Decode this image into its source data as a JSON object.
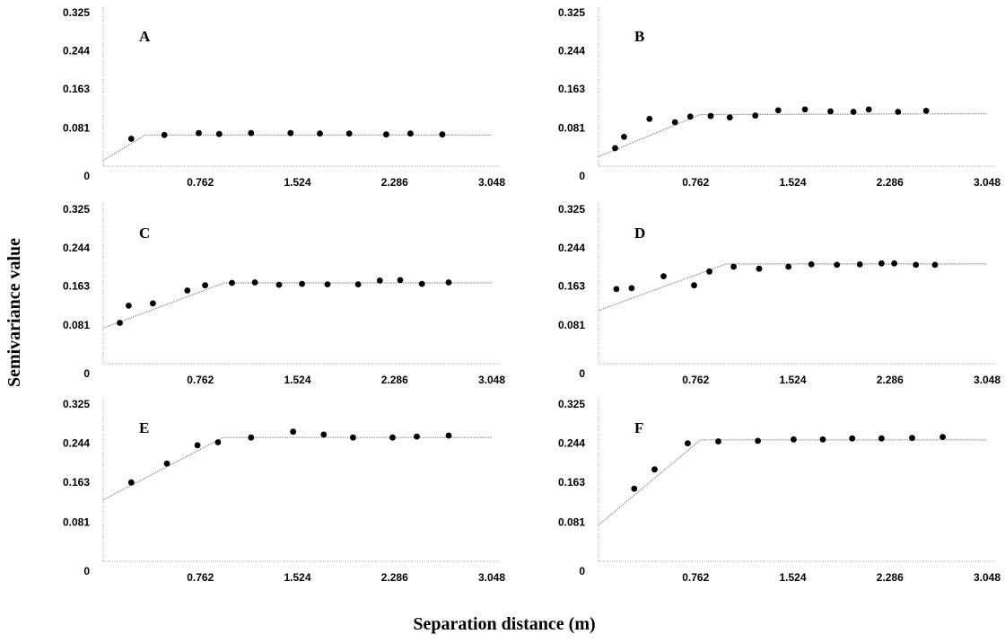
{
  "figure": {
    "ylabel": "Semivariance value",
    "xlabel": "Separation distance (m)"
  },
  "chart_data": [
    {
      "type": "scatter",
      "panel": "A",
      "xticks": [
        "0.762",
        "1.524",
        "2.286",
        "3.048"
      ],
      "yticks": [
        "0",
        "0.081",
        "0.163",
        "0.244",
        "0.325"
      ],
      "xlim": [
        0,
        3.048
      ],
      "ylim": [
        0,
        0.325
      ],
      "points": [
        [
          0.22,
          0.058
        ],
        [
          0.48,
          0.066
        ],
        [
          0.75,
          0.07
        ],
        [
          0.91,
          0.068
        ],
        [
          1.16,
          0.07
        ],
        [
          1.47,
          0.07
        ],
        [
          1.7,
          0.069
        ],
        [
          1.93,
          0.069
        ],
        [
          2.22,
          0.067
        ],
        [
          2.41,
          0.069
        ],
        [
          2.66,
          0.067
        ]
      ],
      "model": [
        [
          0,
          0.012
        ],
        [
          0.33,
          0.066
        ],
        [
          3.048,
          0.066
        ]
      ]
    },
    {
      "type": "scatter",
      "panel": "B",
      "xticks": [
        "0.762",
        "1.524",
        "2.286",
        "3.048"
      ],
      "yticks": [
        "0",
        "0.081",
        "0.163",
        "0.244",
        "0.325"
      ],
      "xlim": [
        0,
        3.048
      ],
      "ylim": [
        0,
        0.325
      ],
      "points": [
        [
          0.13,
          0.038
        ],
        [
          0.2,
          0.062
        ],
        [
          0.4,
          0.1
        ],
        [
          0.6,
          0.093
        ],
        [
          0.72,
          0.105
        ],
        [
          0.88,
          0.106
        ],
        [
          1.03,
          0.103
        ],
        [
          1.23,
          0.107
        ],
        [
          1.41,
          0.118
        ],
        [
          1.62,
          0.12
        ],
        [
          1.82,
          0.116
        ],
        [
          2.0,
          0.115
        ],
        [
          2.12,
          0.12
        ],
        [
          2.35,
          0.115
        ],
        [
          2.57,
          0.117
        ]
      ],
      "model": [
        [
          0,
          0.02
        ],
        [
          0.8,
          0.109
        ],
        [
          3.048,
          0.111
        ]
      ]
    },
    {
      "type": "scatter",
      "panel": "C",
      "xticks": [
        "0.762",
        "1.524",
        "2.286",
        "3.048"
      ],
      "yticks": [
        "0",
        "0.081",
        "0.163",
        "0.244",
        "0.325"
      ],
      "xlim": [
        0,
        3.048
      ],
      "ylim": [
        0,
        0.325
      ],
      "points": [
        [
          0.13,
          0.086
        ],
        [
          0.2,
          0.122
        ],
        [
          0.39,
          0.127
        ],
        [
          0.66,
          0.154
        ],
        [
          0.8,
          0.165
        ],
        [
          1.01,
          0.17
        ],
        [
          1.19,
          0.171
        ],
        [
          1.38,
          0.166
        ],
        [
          1.56,
          0.168
        ],
        [
          1.76,
          0.167
        ],
        [
          2.0,
          0.167
        ],
        [
          2.17,
          0.175
        ],
        [
          2.33,
          0.176
        ],
        [
          2.5,
          0.168
        ],
        [
          2.71,
          0.171
        ]
      ],
      "model": [
        [
          0,
          0.075
        ],
        [
          0.95,
          0.17
        ],
        [
          3.048,
          0.17
        ]
      ]
    },
    {
      "type": "scatter",
      "panel": "D",
      "xticks": [
        "0.762",
        "1.524",
        "2.286",
        "3.048"
      ],
      "yticks": [
        "0",
        "0.081",
        "0.163",
        "0.244",
        "0.325"
      ],
      "xlim": [
        0,
        3.048
      ],
      "ylim": [
        0,
        0.325
      ],
      "points": [
        [
          0.14,
          0.157
        ],
        [
          0.26,
          0.159
        ],
        [
          0.51,
          0.184
        ],
        [
          0.75,
          0.165
        ],
        [
          0.87,
          0.194
        ],
        [
          1.06,
          0.204
        ],
        [
          1.26,
          0.2
        ],
        [
          1.49,
          0.204
        ],
        [
          1.67,
          0.209
        ],
        [
          1.87,
          0.208
        ],
        [
          2.05,
          0.209
        ],
        [
          2.22,
          0.211
        ],
        [
          2.32,
          0.211
        ],
        [
          2.49,
          0.208
        ],
        [
          2.64,
          0.208
        ]
      ],
      "model": [
        [
          0,
          0.112
        ],
        [
          1.0,
          0.21
        ],
        [
          3.048,
          0.21
        ]
      ]
    },
    {
      "type": "scatter",
      "panel": "E",
      "xticks": [
        "0.762",
        "1.524",
        "2.286",
        "3.048"
      ],
      "yticks": [
        "0",
        "0.081",
        "0.163",
        "0.244",
        "0.325"
      ],
      "xlim": [
        0,
        3.048
      ],
      "ylim": [
        0,
        0.325
      ],
      "points": [
        [
          0.22,
          0.163
        ],
        [
          0.5,
          0.202
        ],
        [
          0.74,
          0.24
        ],
        [
          0.9,
          0.246
        ],
        [
          1.16,
          0.256
        ],
        [
          1.49,
          0.268
        ],
        [
          1.73,
          0.262
        ],
        [
          1.96,
          0.256
        ],
        [
          2.27,
          0.256
        ],
        [
          2.46,
          0.258
        ],
        [
          2.71,
          0.26
        ]
      ],
      "model": [
        [
          0,
          0.127
        ],
        [
          0.94,
          0.256
        ],
        [
          3.048,
          0.256
        ]
      ]
    },
    {
      "type": "scatter",
      "panel": "F",
      "xticks": [
        "0.762",
        "1.524",
        "2.286",
        "3.048"
      ],
      "yticks": [
        "0",
        "0.081",
        "0.163",
        "0.244",
        "0.325"
      ],
      "xlim": [
        0,
        3.048
      ],
      "ylim": [
        0,
        0.325
      ],
      "points": [
        [
          0.28,
          0.15
        ],
        [
          0.44,
          0.19
        ],
        [
          0.7,
          0.244
        ],
        [
          0.94,
          0.248
        ],
        [
          1.25,
          0.249
        ],
        [
          1.53,
          0.252
        ],
        [
          1.76,
          0.252
        ],
        [
          1.99,
          0.254
        ],
        [
          2.22,
          0.254
        ],
        [
          2.46,
          0.255
        ],
        [
          2.7,
          0.257
        ]
      ],
      "model": [
        [
          0,
          0.075
        ],
        [
          0.8,
          0.251
        ],
        [
          3.048,
          0.251
        ]
      ]
    }
  ]
}
